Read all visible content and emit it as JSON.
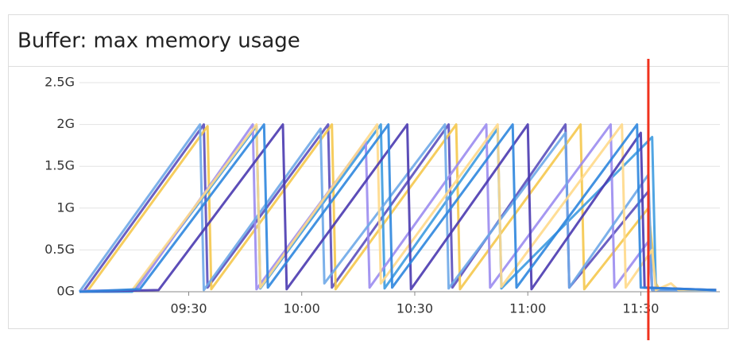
{
  "chart_data": {
    "type": "line",
    "title": "Buffer: max memory usage",
    "xlim": [
      "09:01",
      "11:51"
    ],
    "xticks": [
      "09:30",
      "10:00",
      "10:30",
      "11:00",
      "11:30"
    ],
    "ylim": [
      0,
      2.5
    ],
    "yticks": [
      {
        "value": 0,
        "label": "0G"
      },
      {
        "value": 0.5,
        "label": "0.5G"
      },
      {
        "value": 1,
        "label": "1G"
      },
      {
        "value": 1.5,
        "label": "1.5G"
      },
      {
        "value": 2,
        "label": "2G"
      },
      {
        "value": 2.5,
        "label": "2.5G"
      }
    ],
    "grid": true,
    "marker_x": "11:32",
    "marker_color": "#f0321e",
    "series": [
      {
        "color": "#5b4fbd",
        "x": [
          "09:02",
          "09:34",
          "09:35",
          "10:07",
          "10:08",
          "10:39",
          "10:40",
          "11:10",
          "11:11",
          "11:32",
          "11:33",
          "11:50"
        ],
        "values": [
          0,
          2.0,
          0.05,
          2.0,
          0.05,
          2.0,
          0.05,
          2.0,
          0.05,
          1.2,
          0.02,
          0.02
        ]
      },
      {
        "color": "#f5c84c",
        "x": [
          "09:01",
          "09:03",
          "09:35",
          "09:36",
          "10:08",
          "10:09",
          "10:41",
          "10:42",
          "11:14",
          "11:15",
          "11:32",
          "11:34",
          "11:35",
          "11:50"
        ],
        "values": [
          0,
          0,
          1.98,
          0.03,
          2.0,
          0.03,
          2.0,
          0.03,
          2.0,
          0.03,
          1.0,
          0.1,
          0.02,
          0.02
        ]
      },
      {
        "color": "#3d9be0",
        "x": [
          "09:01",
          "09:15",
          "09:48",
          "09:49",
          "10:21",
          "10:22",
          "10:52",
          "10:53",
          "11:33",
          "11:34",
          "11:50"
        ],
        "values": [
          0,
          0,
          1.98,
          0.04,
          2.0,
          0.04,
          1.95,
          0.04,
          1.85,
          0.03,
          0.02
        ]
      },
      {
        "color": "#9b8cf0",
        "x": [
          "09:01",
          "09:16",
          "09:47",
          "09:48",
          "10:17",
          "10:18",
          "10:49",
          "10:50",
          "11:22",
          "11:23",
          "11:32",
          "11:33",
          "11:50"
        ],
        "values": [
          0.01,
          0.02,
          2.0,
          0.03,
          1.8,
          0.05,
          2.0,
          0.05,
          2.0,
          0.05,
          0.6,
          0.02,
          0.02
        ]
      },
      {
        "color": "#6ea8e8",
        "x": [
          "09:01",
          "09:33",
          "09:34",
          "10:05",
          "10:06",
          "10:38",
          "10:39",
          "11:10",
          "11:11",
          "11:32",
          "11:33",
          "11:50"
        ],
        "values": [
          0,
          2.0,
          0.02,
          1.95,
          0.1,
          2.0,
          0.04,
          1.9,
          0.05,
          1.4,
          0.02,
          0.01
        ]
      },
      {
        "color": "#ffd98a",
        "x": [
          "09:01",
          "09:15",
          "09:48",
          "09:49",
          "10:20",
          "10:21",
          "10:52",
          "10:53",
          "11:25",
          "11:26",
          "11:33",
          "11:34",
          "11:38",
          "11:40",
          "11:50"
        ],
        "values": [
          0,
          0.02,
          2.0,
          0.05,
          2.0,
          0.1,
          2.0,
          0.06,
          2.0,
          0.05,
          0.5,
          0.02,
          0.1,
          0.02,
          0.02
        ]
      },
      {
        "color": "#4a3ab0",
        "x": [
          "09:01",
          "09:22",
          "09:55",
          "09:56",
          "10:28",
          "10:29",
          "11:00",
          "11:01",
          "11:30",
          "11:31",
          "11:50"
        ],
        "values": [
          0,
          0.02,
          2.0,
          0.03,
          2.0,
          0.03,
          2.0,
          0.03,
          1.9,
          0.05,
          0.02
        ]
      },
      {
        "color": "#2e86de",
        "x": [
          "09:01",
          "09:17",
          "09:50",
          "09:51",
          "10:23",
          "10:24",
          "10:56",
          "10:57",
          "11:29",
          "11:30",
          "11:50"
        ],
        "values": [
          0,
          0.03,
          2.0,
          0.05,
          2.0,
          0.05,
          2.0,
          0.05,
          2.0,
          0.05,
          0.02
        ]
      }
    ]
  }
}
